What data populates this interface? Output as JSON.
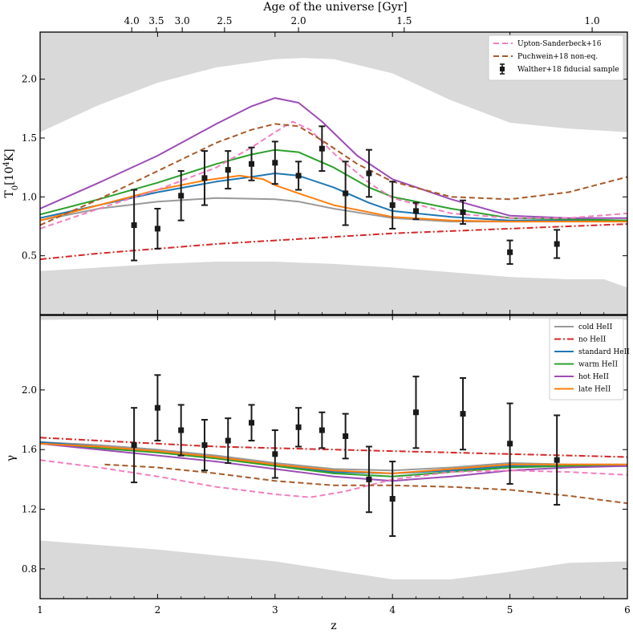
{
  "figure": {
    "top_axis_title": "Age of the universe [Gyr]",
    "top_axis_ticks": [
      {
        "z": 1.78,
        "label": "4.0"
      },
      {
        "z": 1.99,
        "label": "3.5"
      },
      {
        "z": 2.21,
        "label": "3.0"
      },
      {
        "z": 2.57,
        "label": "2.5"
      },
      {
        "z": 3.2,
        "label": "2.0"
      },
      {
        "z": 4.1,
        "label": "1.5"
      },
      {
        "z": 5.7,
        "label": "1.0"
      }
    ],
    "xlabel": "z"
  },
  "chart_data": [
    {
      "type": "line",
      "panel": "top",
      "ylabel": "T0[10^4K]",
      "ylabel_main": "T",
      "ylabel_sub": "0",
      "ylabel_bracket_open": "[10",
      "ylabel_sup": "4",
      "ylabel_bracket_close": "K]",
      "xlim": [
        1,
        6
      ],
      "ylim": [
        0,
        2.4
      ],
      "yticks": [
        {
          "v": 0.5,
          "label": "0.5"
        },
        {
          "v": 1.0,
          "label": "1.0"
        },
        {
          "v": 1.5,
          "label": "1.5"
        },
        {
          "v": 2.0,
          "label": "2.0"
        }
      ],
      "shaded_upper": {
        "x": [
          1.0,
          1.5,
          2.0,
          2.5,
          3.0,
          3.25,
          3.5,
          4.0,
          4.5,
          5.0,
          5.5,
          6.0
        ],
        "y": [
          1.55,
          1.78,
          1.97,
          2.1,
          2.17,
          2.18,
          2.17,
          2.05,
          1.82,
          1.63,
          1.58,
          1.55
        ]
      },
      "shaded_lower": {
        "x": [
          1.0,
          1.5,
          2.0,
          2.5,
          3.0,
          3.5,
          4.0,
          4.5,
          5.0,
          5.5,
          5.8,
          6.0
        ],
        "y": [
          0.37,
          0.4,
          0.43,
          0.45,
          0.45,
          0.43,
          0.4,
          0.36,
          0.32,
          0.3,
          0.3,
          0.23
        ]
      },
      "series": [
        {
          "name": "cold HeII",
          "color": "#999999",
          "style": "solid",
          "width": 2,
          "x": [
            1.0,
            1.5,
            2.0,
            2.5,
            3.0,
            3.2,
            3.5,
            4.0,
            4.5,
            5.0,
            5.5,
            6.0
          ],
          "y": [
            0.8,
            0.9,
            0.96,
            0.99,
            0.98,
            0.96,
            0.9,
            0.82,
            0.79,
            0.79,
            0.8,
            0.8
          ]
        },
        {
          "name": "standard HeII",
          "color": "#1f77b4",
          "style": "solid",
          "width": 2,
          "x": [
            1.0,
            1.5,
            2.0,
            2.5,
            2.8,
            3.0,
            3.2,
            3.5,
            3.8,
            4.0,
            4.5,
            5.0,
            5.5,
            6.0
          ],
          "y": [
            0.82,
            0.93,
            1.04,
            1.13,
            1.17,
            1.2,
            1.18,
            1.08,
            0.95,
            0.88,
            0.83,
            0.8,
            0.8,
            0.8
          ]
        },
        {
          "name": "warm HeII",
          "color": "#2ca02c",
          "style": "solid",
          "width": 2,
          "x": [
            1.0,
            1.5,
            2.0,
            2.5,
            2.8,
            3.0,
            3.2,
            3.5,
            3.8,
            4.0,
            4.5,
            5.0,
            5.5,
            6.0
          ],
          "y": [
            0.85,
            0.98,
            1.12,
            1.28,
            1.36,
            1.4,
            1.38,
            1.25,
            1.08,
            1.0,
            0.9,
            0.82,
            0.81,
            0.8
          ]
        },
        {
          "name": "hot HeII",
          "color": "#9b4db5",
          "style": "solid",
          "width": 2,
          "x": [
            1.0,
            1.5,
            2.0,
            2.5,
            2.8,
            3.0,
            3.2,
            3.4,
            3.7,
            4.0,
            4.5,
            5.0,
            5.5,
            6.0
          ],
          "y": [
            0.9,
            1.12,
            1.35,
            1.62,
            1.77,
            1.84,
            1.8,
            1.64,
            1.35,
            1.15,
            0.98,
            0.84,
            0.82,
            0.82
          ]
        },
        {
          "name": "late HeII",
          "color": "#ff7f0e",
          "style": "solid",
          "width": 2,
          "x": [
            1.0,
            1.5,
            2.0,
            2.4,
            2.7,
            2.9,
            3.0,
            3.2,
            3.5,
            4.0,
            4.5,
            5.0,
            5.5,
            6.0
          ],
          "y": [
            0.8,
            0.93,
            1.06,
            1.14,
            1.18,
            1.15,
            1.1,
            1.03,
            0.93,
            0.83,
            0.8,
            0.79,
            0.79,
            0.79
          ]
        },
        {
          "name": "no HeII",
          "color": "#d62728",
          "style": "dashdot",
          "width": 2,
          "x": [
            1.0,
            1.5,
            2.0,
            2.5,
            3.0,
            3.5,
            4.0,
            4.5,
            5.0,
            5.5,
            6.0
          ],
          "y": [
            0.47,
            0.52,
            0.56,
            0.6,
            0.63,
            0.66,
            0.69,
            0.71,
            0.73,
            0.75,
            0.77
          ]
        },
        {
          "name": "Upton-Sanderbeck+16",
          "color": "#f27fc0",
          "style": "dashed",
          "width": 2,
          "x": [
            1.0,
            1.5,
            2.0,
            2.5,
            2.8,
            3.0,
            3.15,
            3.3,
            3.5,
            3.8,
            4.0,
            4.5,
            5.0,
            5.5,
            6.0
          ],
          "y": [
            0.73,
            0.9,
            1.06,
            1.25,
            1.42,
            1.55,
            1.64,
            1.57,
            1.37,
            1.12,
            0.99,
            0.86,
            0.82,
            0.82,
            0.86
          ]
        },
        {
          "name": "Puchwein+18 non-eq.",
          "color": "#a85a2a",
          "style": "dashed",
          "width": 2,
          "x": [
            1.0,
            1.5,
            2.0,
            2.5,
            2.8,
            3.0,
            3.2,
            3.4,
            3.7,
            4.0,
            4.5,
            5.0,
            5.5,
            6.0
          ],
          "y": [
            0.76,
            0.98,
            1.22,
            1.46,
            1.57,
            1.62,
            1.6,
            1.48,
            1.28,
            1.13,
            1.0,
            0.98,
            1.04,
            1.17
          ]
        }
      ],
      "points": {
        "name": "Walther+18 fiducial sample",
        "color": "#1a1a1a",
        "x": [
          1.8,
          2.0,
          2.2,
          2.4,
          2.6,
          2.8,
          3.0,
          3.2,
          3.4,
          3.6,
          3.8,
          4.0,
          4.2,
          4.6,
          5.0,
          5.4
        ],
        "y": [
          0.76,
          0.73,
          1.01,
          1.16,
          1.23,
          1.28,
          1.29,
          1.18,
          1.41,
          1.03,
          1.2,
          0.93,
          0.88,
          0.87,
          0.53,
          0.6
        ],
        "err": [
          0.3,
          0.17,
          0.21,
          0.23,
          0.16,
          0.14,
          0.18,
          0.12,
          0.19,
          0.27,
          0.2,
          0.2,
          0.07,
          0.1,
          0.1,
          0.12
        ]
      },
      "legend": {
        "position": "top-right",
        "entries": [
          {
            "label": "Upton-Sanderbeck+16",
            "color": "#f27fc0",
            "style": "dashed"
          },
          {
            "label": "Puchwein+18 non-eq.",
            "color": "#a85a2a",
            "style": "dashed"
          },
          {
            "label": "Walther+18 fiducial sample",
            "color": "#1a1a1a",
            "style": "errorbar"
          }
        ]
      }
    },
    {
      "type": "line",
      "panel": "bottom",
      "ylabel": "γ",
      "xlim": [
        1,
        6
      ],
      "ylim": [
        0.6,
        2.5
      ],
      "yticks": [
        {
          "v": 0.8,
          "label": "0.8"
        },
        {
          "v": 1.2,
          "label": "1.2"
        },
        {
          "v": 1.6,
          "label": "1.6"
        },
        {
          "v": 2.0,
          "label": "2.0"
        }
      ],
      "xticks": [
        {
          "v": 1,
          "label": "1"
        },
        {
          "v": 2,
          "label": "2"
        },
        {
          "v": 3,
          "label": "3"
        },
        {
          "v": 4,
          "label": "4"
        },
        {
          "v": 5,
          "label": "5"
        },
        {
          "v": 6,
          "label": "6"
        }
      ],
      "shaded_upper": {
        "x": [
          1.0,
          2.0,
          3.0,
          4.0,
          5.0,
          6.0
        ],
        "y": [
          2.47,
          2.48,
          2.48,
          2.48,
          2.48,
          2.47
        ]
      },
      "shaded_lower": {
        "x": [
          1.0,
          1.5,
          2.0,
          2.5,
          3.0,
          3.5,
          4.0,
          4.5,
          5.0,
          5.5,
          6.0
        ],
        "y": [
          0.99,
          0.96,
          0.93,
          0.89,
          0.85,
          0.79,
          0.73,
          0.73,
          0.78,
          0.84,
          0.85
        ]
      },
      "series": [
        {
          "name": "cold HeII",
          "color": "#999999",
          "style": "solid",
          "width": 2,
          "x": [
            1.0,
            1.5,
            2.0,
            2.5,
            3.0,
            3.5,
            4.0,
            4.5,
            5.0,
            5.5,
            6.0
          ],
          "y": [
            1.65,
            1.63,
            1.6,
            1.56,
            1.51,
            1.47,
            1.46,
            1.48,
            1.51,
            1.5,
            1.5
          ]
        },
        {
          "name": "standard HeII",
          "color": "#1f77b4",
          "style": "solid",
          "width": 2,
          "x": [
            1.0,
            1.5,
            2.0,
            2.5,
            3.0,
            3.5,
            4.0,
            4.5,
            5.0,
            5.5,
            6.0
          ],
          "y": [
            1.65,
            1.62,
            1.59,
            1.55,
            1.5,
            1.45,
            1.44,
            1.46,
            1.49,
            1.49,
            1.49
          ]
        },
        {
          "name": "warm HeII",
          "color": "#2ca02c",
          "style": "solid",
          "width": 2,
          "x": [
            1.0,
            1.5,
            2.0,
            2.5,
            3.0,
            3.5,
            4.0,
            4.5,
            5.0,
            5.5,
            6.0
          ],
          "y": [
            1.64,
            1.61,
            1.58,
            1.54,
            1.49,
            1.44,
            1.42,
            1.45,
            1.48,
            1.49,
            1.49
          ]
        },
        {
          "name": "hot HeII",
          "color": "#9b4db5",
          "style": "solid",
          "width": 2,
          "x": [
            1.0,
            1.5,
            2.0,
            2.5,
            3.0,
            3.5,
            4.0,
            4.5,
            5.0,
            5.5,
            6.0
          ],
          "y": [
            1.64,
            1.6,
            1.56,
            1.52,
            1.47,
            1.42,
            1.39,
            1.42,
            1.46,
            1.48,
            1.49
          ]
        },
        {
          "name": "late HeII",
          "color": "#ff7f0e",
          "style": "solid",
          "width": 2,
          "x": [
            1.0,
            1.5,
            2.0,
            2.5,
            3.0,
            3.5,
            4.0,
            4.5,
            5.0,
            5.5,
            6.0
          ],
          "y": [
            1.64,
            1.62,
            1.59,
            1.55,
            1.5,
            1.46,
            1.44,
            1.47,
            1.5,
            1.5,
            1.5
          ]
        },
        {
          "name": "no HeII",
          "color": "#d62728",
          "style": "dashdot",
          "width": 2,
          "x": [
            1.0,
            1.5,
            2.0,
            2.5,
            3.0,
            3.5,
            4.0,
            4.5,
            5.0,
            5.5,
            6.0
          ],
          "y": [
            1.68,
            1.66,
            1.64,
            1.62,
            1.61,
            1.6,
            1.59,
            1.58,
            1.57,
            1.56,
            1.55
          ]
        },
        {
          "name": "Upton-Sanderbeck+16",
          "color": "#f27fc0",
          "style": "dashed",
          "width": 2,
          "x": [
            1.0,
            1.5,
            2.0,
            2.5,
            3.0,
            3.3,
            3.6,
            4.0,
            4.5,
            5.0,
            5.5,
            6.0
          ],
          "y": [
            1.53,
            1.48,
            1.42,
            1.35,
            1.3,
            1.28,
            1.32,
            1.4,
            1.45,
            1.46,
            1.45,
            1.43
          ]
        },
        {
          "name": "Puchwein+18 non-eq.",
          "color": "#a85a2a",
          "style": "dashed",
          "width": 2,
          "x": [
            1.55,
            2.0,
            2.5,
            3.0,
            3.5,
            4.0,
            4.5,
            5.0,
            5.5,
            6.0
          ],
          "y": [
            1.5,
            1.48,
            1.44,
            1.39,
            1.36,
            1.36,
            1.35,
            1.33,
            1.29,
            1.24
          ]
        }
      ],
      "points": {
        "name": "Walther+18 fiducial sample",
        "color": "#1a1a1a",
        "x": [
          1.8,
          2.0,
          2.2,
          2.4,
          2.6,
          2.8,
          3.0,
          3.2,
          3.4,
          3.6,
          3.8,
          4.0,
          4.2,
          4.6,
          5.0,
          5.4
        ],
        "y": [
          1.63,
          1.88,
          1.73,
          1.63,
          1.66,
          1.78,
          1.57,
          1.75,
          1.73,
          1.69,
          1.4,
          1.27,
          1.85,
          1.84,
          1.64,
          1.53
        ],
        "err": [
          0.25,
          0.22,
          0.17,
          0.17,
          0.15,
          0.12,
          0.16,
          0.13,
          0.12,
          0.15,
          0.22,
          0.25,
          0.24,
          0.24,
          0.27,
          0.3
        ]
      },
      "legend": {
        "position": "top-right",
        "entries": [
          {
            "label": "cold HeII",
            "color": "#999999",
            "style": "solid"
          },
          {
            "label": "no HeII",
            "color": "#d62728",
            "style": "dashdot"
          },
          {
            "label": "standard HeII",
            "color": "#1f77b4",
            "style": "solid"
          },
          {
            "label": "warm HeII",
            "color": "#2ca02c",
            "style": "solid"
          },
          {
            "label": "hot HeII",
            "color": "#9b4db5",
            "style": "solid"
          },
          {
            "label": "late HeII",
            "color": "#ff7f0e",
            "style": "solid"
          }
        ]
      }
    }
  ]
}
